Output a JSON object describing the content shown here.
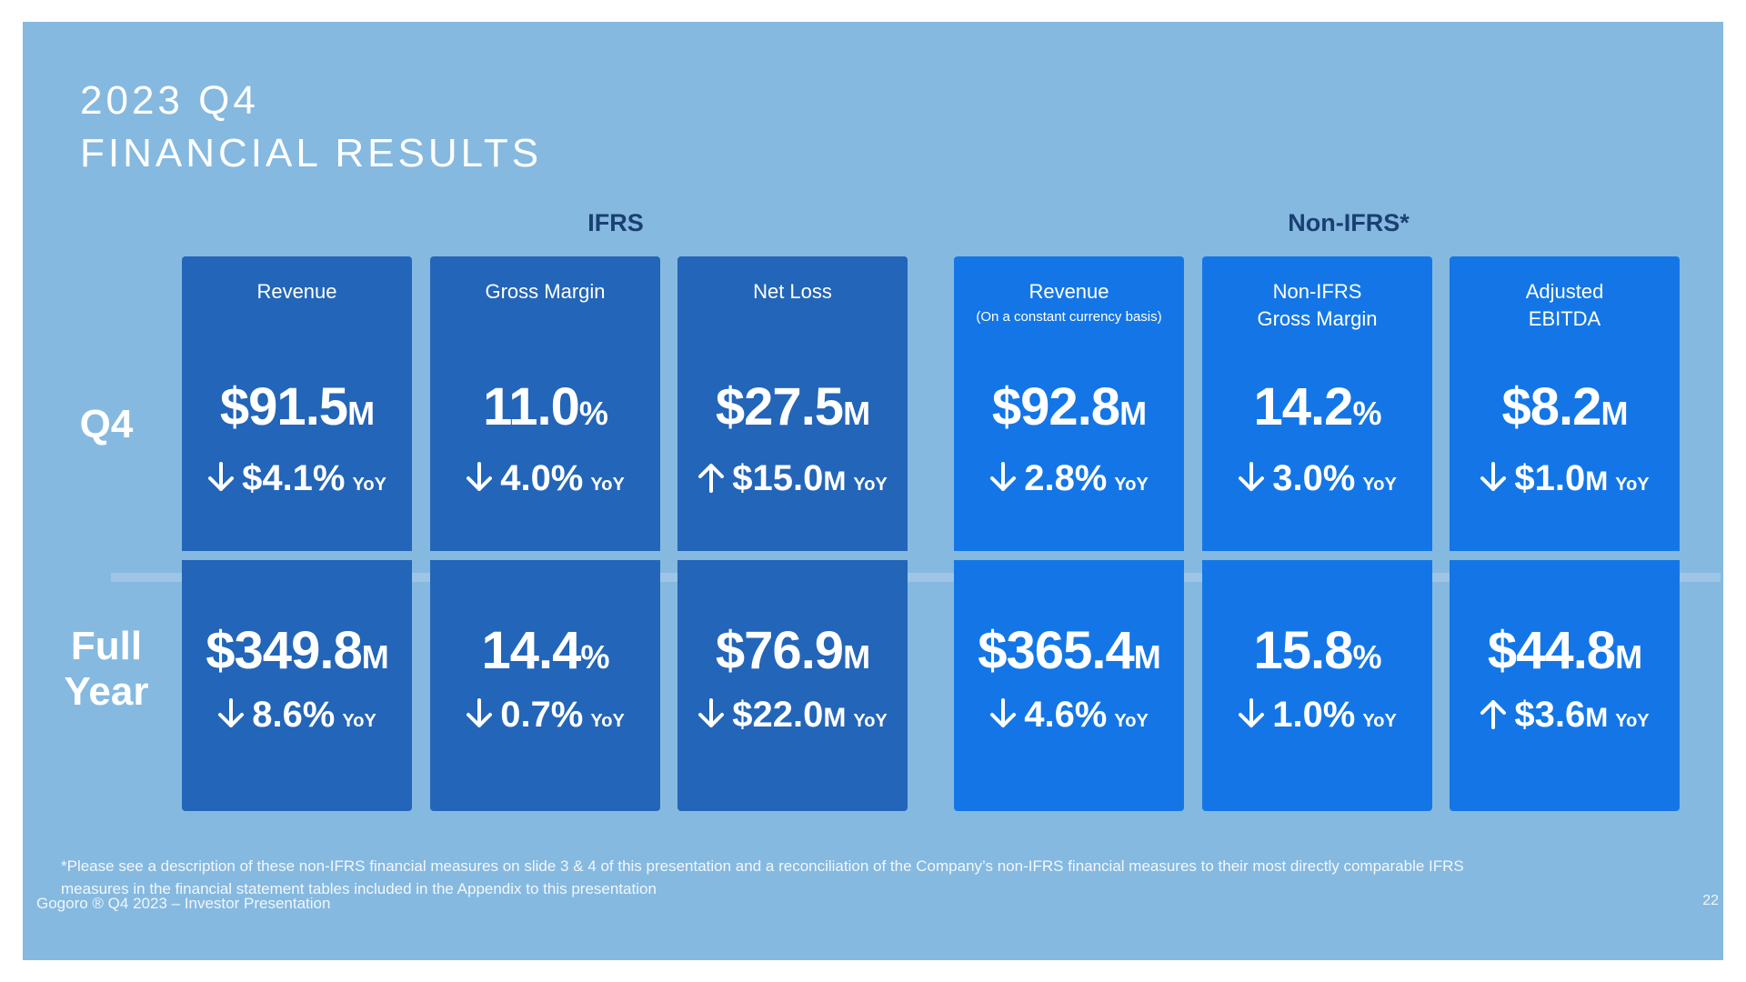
{
  "title": {
    "line1": "2023 Q4",
    "line2": "FINANCIAL RESULTS"
  },
  "groups": {
    "ifrs": "IFRS",
    "non_ifrs": "Non-IFRS*"
  },
  "rows": {
    "q4": "Q4",
    "full_year_1": "Full",
    "full_year_2": "Year"
  },
  "yoy": "YoY",
  "cards": [
    {
      "title": "Revenue",
      "subtitle": "",
      "group": "ifrs",
      "q4": {
        "value": "$91.5",
        "suffix": "M",
        "direction": "down",
        "change": "$4.1%",
        "change_suffix": ""
      },
      "fy": {
        "value": "$349.8",
        "suffix": "M",
        "direction": "down",
        "change": "8.6%",
        "change_suffix": ""
      }
    },
    {
      "title": "Gross Margin",
      "subtitle": "",
      "group": "ifrs",
      "q4": {
        "value": "11.0",
        "suffix": "%",
        "direction": "down",
        "change": "4.0%",
        "change_suffix": ""
      },
      "fy": {
        "value": "14.4",
        "suffix": "%",
        "direction": "down",
        "change": "0.7%",
        "change_suffix": ""
      }
    },
    {
      "title": "Net Loss",
      "subtitle": "",
      "group": "ifrs",
      "q4": {
        "value": "$27.5",
        "suffix": "M",
        "direction": "up",
        "change": "$15.0",
        "change_suffix": "M"
      },
      "fy": {
        "value": "$76.9",
        "suffix": "M",
        "direction": "down",
        "change": "$22.0",
        "change_suffix": "M"
      }
    },
    {
      "title": "Revenue",
      "subtitle": "(On a constant currency basis)",
      "group": "nonifrs",
      "q4": {
        "value": "$92.8",
        "suffix": "M",
        "direction": "down",
        "change": "2.8%",
        "change_suffix": ""
      },
      "fy": {
        "value": "$365.4",
        "suffix": "M",
        "direction": "down",
        "change": "4.6%",
        "change_suffix": ""
      }
    },
    {
      "title": "Non-IFRS",
      "title2": "Gross Margin",
      "subtitle": "",
      "group": "nonifrs",
      "q4": {
        "value": "14.2",
        "suffix": "%",
        "direction": "down",
        "change": "3.0%",
        "change_suffix": ""
      },
      "fy": {
        "value": "15.8",
        "suffix": "%",
        "direction": "down",
        "change": "1.0%",
        "change_suffix": ""
      }
    },
    {
      "title": "Adjusted",
      "title2": "EBITDA",
      "subtitle": "",
      "group": "nonifrs",
      "q4": {
        "value": "$8.2",
        "suffix": "M",
        "direction": "down",
        "change": "$1.0",
        "change_suffix": "M"
      },
      "fy": {
        "value": "$44.8",
        "suffix": "M",
        "direction": "up",
        "change": "$3.6",
        "change_suffix": "M"
      }
    }
  ],
  "footnote": "*Please see a description of these non-IFRS financial measures on slide 3 & 4 of this presentation and a reconciliation of the Company’s non-IFRS financial measures to their most directly comparable IFRS measures in the financial statement tables included in the Appendix to this presentation",
  "footer": {
    "left": "Gogoro ® Q4 2023 – Investor Presentation",
    "page": "22"
  },
  "colors": {
    "background": "#85b9e0",
    "ifrs_card": "#2365b8",
    "non_ifrs_card": "#1476e6",
    "group_header": "#1a3f72"
  },
  "icons": {
    "down": "arrow-down-icon",
    "up": "arrow-up-icon"
  }
}
